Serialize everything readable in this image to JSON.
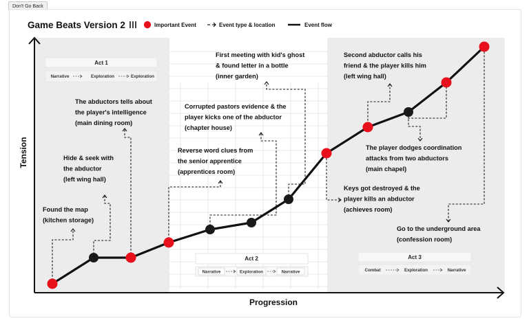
{
  "button": {
    "label": "Don't Go Back"
  },
  "diagram": {
    "title": "Game Beats Version 2",
    "legend": {
      "important_event": "Important Event",
      "event_type": "Event type & location",
      "event_flow": "Event flow"
    },
    "axes": {
      "x": "Progression",
      "y": "Tension"
    },
    "acts": [
      {
        "title": "Act 1",
        "chips": [
          "Narrative",
          "Exploration",
          "Exploration"
        ]
      },
      {
        "title": "Act 2",
        "chips": [
          "Narrative",
          "Exploration",
          "Narrative"
        ]
      },
      {
        "title": "Act 3",
        "chips": [
          "Combat",
          "Exploration",
          "Narrative"
        ]
      }
    ],
    "events": [
      {
        "lines": [
          "Found the map",
          "(kitchen storage)"
        ],
        "important": true
      },
      {
        "lines": [
          "Hide & seek with",
          "the abductor",
          "(left wing hall)"
        ],
        "important": false
      },
      {
        "lines": [
          "The abductors tells about",
          "the player's intelligence",
          "(main dining room)"
        ],
        "important": true
      },
      {
        "lines": [
          "Reverse word clues from",
          "the senior apprentice",
          "(apprentices room)"
        ],
        "important": true
      },
      {
        "lines": [
          "Corrupted pastors evidence & the",
          "player kicks one of the abductor",
          "(chapter house)"
        ],
        "important": false
      },
      {
        "lines": [],
        "important": false
      },
      {
        "lines": [
          "First meeting with kid's ghost",
          "& found letter in a bottle",
          "(inner garden)"
        ],
        "important": false
      },
      {
        "lines": [
          "Keys got destroyed & the",
          "player kills an abductor",
          "(achieves room)"
        ],
        "important": true
      },
      {
        "lines": [
          "Second abductor calls his",
          "friend & the player kills him",
          "(left wing hall)"
        ],
        "important": true
      },
      {
        "lines": [
          "The player dodges coordination",
          "attacks from two abductors",
          "(main chapel)"
        ],
        "important": false
      },
      {
        "lines": [],
        "important": true
      },
      {
        "lines": [
          "Go to the underground area",
          "(confession room)"
        ],
        "important": true
      }
    ],
    "colors": {
      "important": "#e8101a",
      "normal": "#1a1a1a",
      "band": "#ececec"
    }
  }
}
